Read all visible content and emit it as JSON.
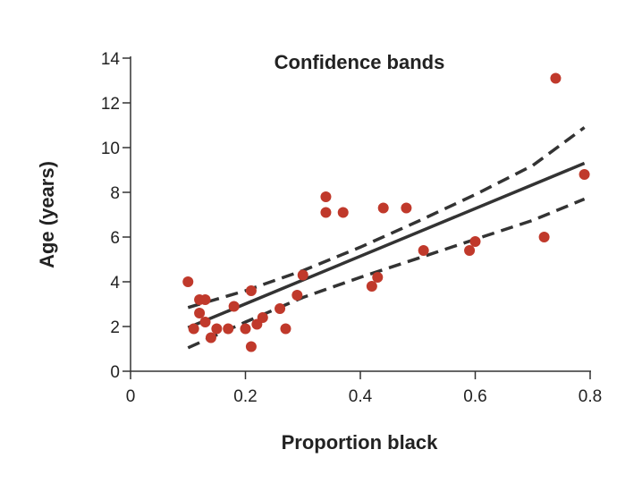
{
  "chart_data": {
    "type": "scatter",
    "title": "Confidence bands",
    "xlabel": "Proportion black",
    "ylabel": "Age (years)",
    "xlim": [
      0,
      0.8
    ],
    "ylim": [
      0,
      14
    ],
    "x_ticks": [
      0,
      0.2,
      0.4,
      0.6,
      0.8
    ],
    "x_tick_labels": [
      "0",
      "0.2",
      "0.4",
      "0.6",
      "0.8"
    ],
    "y_ticks": [
      0,
      2,
      4,
      6,
      8,
      10,
      12,
      14
    ],
    "y_tick_labels": [
      "0",
      "2",
      "4",
      "6",
      "8",
      "10",
      "12",
      "14"
    ],
    "grid": false,
    "point_color": "#c0392b",
    "line_color": "#333333",
    "points": [
      {
        "x": 0.1,
        "y": 4.0
      },
      {
        "x": 0.11,
        "y": 1.9
      },
      {
        "x": 0.12,
        "y": 3.2
      },
      {
        "x": 0.12,
        "y": 2.6
      },
      {
        "x": 0.13,
        "y": 3.2
      },
      {
        "x": 0.13,
        "y": 2.2
      },
      {
        "x": 0.14,
        "y": 1.5
      },
      {
        "x": 0.15,
        "y": 1.9
      },
      {
        "x": 0.17,
        "y": 1.9
      },
      {
        "x": 0.18,
        "y": 2.9
      },
      {
        "x": 0.2,
        "y": 1.9
      },
      {
        "x": 0.21,
        "y": 3.6
      },
      {
        "x": 0.21,
        "y": 1.1
      },
      {
        "x": 0.22,
        "y": 2.1
      },
      {
        "x": 0.23,
        "y": 2.4
      },
      {
        "x": 0.26,
        "y": 2.8
      },
      {
        "x": 0.27,
        "y": 1.9
      },
      {
        "x": 0.29,
        "y": 3.4
      },
      {
        "x": 0.3,
        "y": 4.3
      },
      {
        "x": 0.34,
        "y": 7.8
      },
      {
        "x": 0.34,
        "y": 7.1
      },
      {
        "x": 0.37,
        "y": 7.1
      },
      {
        "x": 0.42,
        "y": 3.8
      },
      {
        "x": 0.43,
        "y": 4.2
      },
      {
        "x": 0.44,
        "y": 7.3
      },
      {
        "x": 0.48,
        "y": 7.3
      },
      {
        "x": 0.51,
        "y": 5.4
      },
      {
        "x": 0.59,
        "y": 5.4
      },
      {
        "x": 0.6,
        "y": 5.8
      },
      {
        "x": 0.72,
        "y": 6.0
      },
      {
        "x": 0.74,
        "y": 13.1
      },
      {
        "x": 0.79,
        "y": 8.8
      }
    ],
    "regression_line": {
      "x": [
        0.1,
        0.79
      ],
      "y": [
        1.95,
        9.3
      ]
    },
    "upper_band": {
      "x": [
        0.1,
        0.2,
        0.3,
        0.4,
        0.5,
        0.6,
        0.7,
        0.79
      ],
      "y": [
        2.85,
        3.6,
        4.5,
        5.55,
        6.7,
        7.9,
        9.2,
        10.9
      ]
    },
    "lower_band": {
      "x": [
        0.1,
        0.2,
        0.3,
        0.4,
        0.5,
        0.6,
        0.7,
        0.79
      ],
      "y": [
        1.05,
        2.2,
        3.3,
        4.2,
        5.05,
        5.9,
        6.75,
        7.7
      ]
    }
  }
}
